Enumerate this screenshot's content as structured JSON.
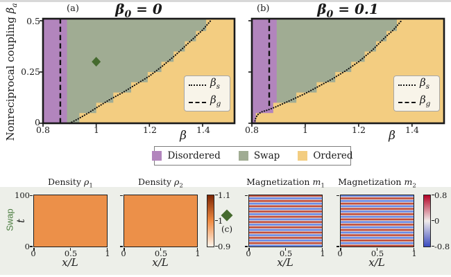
{
  "colors": {
    "disordered": "#b285bd",
    "swap": "#a0ac93",
    "ordered": "#f3cd81",
    "diamond_green": "#456a2e",
    "swap_label_green": "#4a7c3f",
    "inplot_legend_bg": "#f8f4e9",
    "panel_border": "#1a1a1a",
    "bottom_band_bg": "#edefe9",
    "top_bar": "#d8d8d8",
    "density_fill": "#ec9049",
    "density_cbar": [
      "#7f2704",
      "#ef8b42",
      "#fff3e8"
    ],
    "mag_cbar": [
      "#b40426",
      "#f0eceb",
      "#3b4cc0"
    ],
    "stripe_red": "#bf4734",
    "stripe_blue": "#6286e8",
    "stripe_light": "#e8dcd6"
  },
  "panels": {
    "a": {
      "tag": "(a)",
      "beta": "β",
      "sub": "0",
      "rest": " = 0"
    },
    "b": {
      "tag": "(b)",
      "beta": "β",
      "sub": "0",
      "rest": " = 0.1"
    }
  },
  "axes": {
    "ylabel_prefix": "Nonreciprocal coupling ",
    "ylabel_sym": "β",
    "ylabel_sub": "a",
    "xlabel": "β",
    "yticks": [
      "0.5",
      "0.25",
      "0"
    ],
    "xticks": [
      "0.8",
      "1",
      "1.2",
      "1.4"
    ]
  },
  "inplot_legend": {
    "s_sym": "β",
    "s_sub": "s",
    "g_sym": "β",
    "g_sub": "g"
  },
  "phase_legend": {
    "items": [
      {
        "label": "Disordered",
        "color": "#b285bd"
      },
      {
        "label": "Swap",
        "color": "#a0ac93"
      },
      {
        "label": "Ordered",
        "color": "#f3cd81"
      }
    ]
  },
  "bottom": {
    "row_label": "Swap",
    "t_label": "t",
    "t_ticks": [
      "100",
      "0"
    ],
    "x_ticks": [
      "0",
      "0.5",
      "1"
    ],
    "x_over_L": "x/L",
    "titles": [
      {
        "prefix": "Density ",
        "sym": "ρ",
        "sub": "1"
      },
      {
        "prefix": "Density ",
        "sym": "ρ",
        "sub": "2"
      },
      {
        "prefix": "Magnetization ",
        "sym": "m",
        "sub": "1"
      },
      {
        "prefix": "Magnetization ",
        "sym": "m",
        "sub": "2"
      }
    ],
    "c_tag": "(c)",
    "density_cbar_ticks": [
      "1.1",
      "1",
      "0.9"
    ],
    "mag_cbar_ticks": [
      "0.8",
      "0",
      "-0.8"
    ]
  },
  "chart_data": [
    {
      "type": "heatmap",
      "subtype": "phase-diagram",
      "panel": "(a)",
      "title": "β0 = 0",
      "xlabel": "β",
      "ylabel": "Nonreciprocal coupling βa",
      "xlim": [
        0.8,
        1.52
      ],
      "ylim": [
        0,
        0.51
      ],
      "regions": [
        "Disordered",
        "Swap",
        "Ordered"
      ],
      "disordered_right": 0.89,
      "beta_g": 0.865,
      "beta_g_extent": [
        0,
        0.51
      ],
      "step_height": 0.05,
      "beta_s_curve": [
        [
          0.9,
          0
        ],
        [
          0.93,
          0.02
        ],
        [
          0.97,
          0.05
        ],
        [
          1.0,
          0.075
        ],
        [
          1.05,
          0.115
        ],
        [
          1.1,
          0.15
        ],
        [
          1.15,
          0.19
        ],
        [
          1.2,
          0.23
        ],
        [
          1.25,
          0.28
        ],
        [
          1.3,
          0.335
        ],
        [
          1.35,
          0.395
        ],
        [
          1.4,
          0.455
        ],
        [
          1.43,
          0.5
        ]
      ],
      "marker": {
        "x": 1.0,
        "y": 0.3,
        "shape": "diamond",
        "label": "(c)"
      }
    },
    {
      "type": "heatmap",
      "subtype": "phase-diagram",
      "panel": "(b)",
      "title": "β0 = 0.1",
      "xlabel": "β",
      "xlim": [
        0.8,
        1.52
      ],
      "ylim": [
        0,
        0.51
      ],
      "regions": [
        "Disordered",
        "Swap",
        "Ordered"
      ],
      "disordered_right": 0.893,
      "beta_g": 0.865,
      "beta_g_extent": [
        0.085,
        0.51
      ],
      "step_height": 0.05,
      "beta_s_curve": [
        [
          0.81,
          0
        ],
        [
          0.813,
          0.02
        ],
        [
          0.82,
          0.04
        ],
        [
          0.835,
          0.055
        ],
        [
          0.86,
          0.065
        ],
        [
          0.89,
          0.08
        ],
        [
          0.95,
          0.115
        ],
        [
          1.0,
          0.145
        ],
        [
          1.05,
          0.18
        ],
        [
          1.1,
          0.215
        ],
        [
          1.15,
          0.255
        ],
        [
          1.2,
          0.3
        ],
        [
          1.25,
          0.355
        ],
        [
          1.3,
          0.42
        ],
        [
          1.33,
          0.455
        ],
        [
          1.36,
          0.5
        ]
      ]
    },
    {
      "type": "heatmap",
      "panel": "(c)",
      "title": "Density ρ1",
      "xlabel": "x/L",
      "ylabel": "t",
      "xlim": [
        0,
        1
      ],
      "ylim": [
        0,
        100
      ],
      "clim": [
        0.9,
        1.1
      ],
      "cmap": "Oranges",
      "pattern": "uniform",
      "uniform_value": 1.02
    },
    {
      "type": "heatmap",
      "panel": "(c)",
      "title": "Density ρ2",
      "xlabel": "x/L",
      "ylabel": "t",
      "xlim": [
        0,
        1
      ],
      "ylim": [
        0,
        100
      ],
      "clim": [
        0.9,
        1.1
      ],
      "cmap": "Oranges",
      "pattern": "uniform",
      "uniform_value": 1.02
    },
    {
      "type": "heatmap",
      "panel": "(c)",
      "title": "Magnetization m1",
      "xlabel": "x/L",
      "ylabel": "t",
      "xlim": [
        0,
        1
      ],
      "ylim": [
        0,
        100
      ],
      "clim": [
        -0.8,
        0.8
      ],
      "cmap": "coolwarm",
      "pattern": "horizontal-stripes",
      "stripe_periods": 10,
      "amplitude": 0.8,
      "top_value": 0.8
    },
    {
      "type": "heatmap",
      "panel": "(c)",
      "title": "Magnetization m2",
      "xlabel": "x/L",
      "ylabel": "t",
      "xlim": [
        0,
        1
      ],
      "ylim": [
        0,
        100
      ],
      "clim": [
        -0.8,
        0.8
      ],
      "cmap": "coolwarm",
      "pattern": "horizontal-stripes",
      "stripe_periods": 10,
      "amplitude": 0.8,
      "top_value": -0.8
    }
  ]
}
